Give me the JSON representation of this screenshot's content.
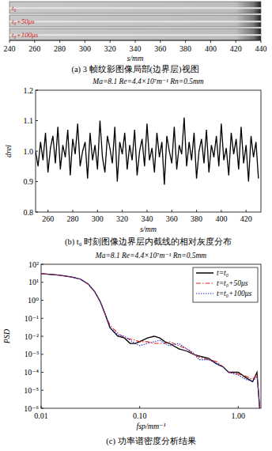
{
  "chart_data": [
    {
      "type": "image",
      "strip_labels": [
        "t₀",
        "t₀+50μs",
        "t₀+100μs"
      ],
      "xlim": [
        240,
        440
      ],
      "xticks": [
        240,
        260,
        280,
        300,
        320,
        340,
        360,
        380,
        400,
        420,
        440
      ],
      "xlabel": "s/mm",
      "caption": "(a) 3 帧纹影图像局部(边界层)视图"
    },
    {
      "type": "line",
      "title": "Ma=8.1   Re=4.4×10⁷m⁻¹   Rn=0.5mm",
      "xlabel": "s/mm",
      "ylabel": "drel",
      "xlim": [
        250,
        432
      ],
      "ylim": [
        0.8,
        1.2
      ],
      "xticks": [
        260,
        280,
        300,
        320,
        340,
        360,
        380,
        400,
        420
      ],
      "yticks": [
        0.8,
        0.9,
        {
          "value": 1,
          "label": "1.0"
        },
        1.1,
        1.2
      ],
      "x": [
        250,
        252,
        254,
        256,
        258,
        260,
        262,
        264,
        266,
        268,
        270,
        272,
        274,
        276,
        278,
        280,
        282,
        284,
        286,
        288,
        290,
        292,
        294,
        296,
        298,
        300,
        302,
        304,
        306,
        308,
        310,
        312,
        314,
        316,
        318,
        320,
        322,
        324,
        326,
        328,
        330,
        332,
        334,
        336,
        338,
        340,
        342,
        344,
        346,
        348,
        350,
        352,
        354,
        356,
        358,
        360,
        362,
        364,
        366,
        368,
        370,
        372,
        374,
        376,
        378,
        380,
        382,
        384,
        386,
        388,
        390,
        392,
        394,
        396,
        398,
        400,
        402,
        404,
        406,
        408,
        410,
        412,
        414,
        416,
        418,
        420,
        422,
        424,
        426,
        428,
        430
      ],
      "values": [
        1.0,
        0.95,
        1.03,
        0.97,
        1.06,
        0.93,
        1.01,
        1.05,
        0.96,
        1.08,
        0.94,
        1.02,
        0.98,
        1.07,
        0.92,
        1.04,
        0.99,
        1.09,
        0.95,
        1.0,
        1.03,
        0.91,
        1.06,
        0.97,
        1.02,
        0.94,
        1.1,
        0.98,
        0.93,
        1.05,
        1.01,
        0.96,
        1.08,
        0.9,
        1.03,
        0.99,
        1.06,
        0.94,
        1.02,
        0.97,
        1.07,
        0.92,
        1.0,
        1.04,
        0.95,
        1.09,
        0.97,
        1.01,
        0.93,
        1.06,
        0.98,
        1.03,
        0.89,
        1.05,
        1.0,
        0.96,
        1.08,
        0.94,
        1.02,
        0.99,
        1.11,
        0.95,
        1.03,
        0.97,
        1.06,
        0.91,
        1.0,
        1.04,
        0.96,
        1.07,
        0.93,
        1.02,
        0.98,
        1.05,
        0.95,
        1.09,
        0.97,
        1.01,
        0.92,
        1.06,
        0.99,
        1.04,
        0.94,
        1.08,
        0.96,
        1.02,
        0.9,
        1.05,
        0.98,
        1.03,
        0.91
      ],
      "color": "#000000",
      "caption": "(b) t₀ 时刻图像边界层内截线的相对灰度分布"
    },
    {
      "type": "line",
      "log": true,
      "title": "Ma=8.1   Re=4.4×10⁷m⁻¹   Rn=0.5mm",
      "xlabel": "fsp/mm⁻¹",
      "ylabel": "PSD",
      "xlim": [
        0.01,
        1.7
      ],
      "ylim": [
        1e-06,
        100
      ],
      "xticks": [
        {
          "value": 0.01,
          "label": "0.01"
        },
        {
          "value": 0.1,
          "label": "0.10"
        },
        {
          "value": 1,
          "label": "1.00"
        }
      ],
      "yticks": [
        {
          "value": 1e-06,
          "label": "10⁻⁶"
        },
        {
          "value": 1e-05,
          "label": "10⁻⁵"
        },
        {
          "value": 0.0001,
          "label": "10⁻⁴"
        },
        {
          "value": 0.001,
          "label": "10⁻³"
        },
        {
          "value": 0.01,
          "label": "10⁻²"
        },
        {
          "value": 0.1,
          "label": "10⁻¹"
        },
        {
          "value": 1,
          "label": "10⁰"
        },
        {
          "value": 10,
          "label": "10¹"
        },
        {
          "value": 100,
          "label": "10²"
        }
      ],
      "x": [
        0.01,
        0.015,
        0.02,
        0.025,
        0.03,
        0.035,
        0.04,
        0.045,
        0.05,
        0.06,
        0.07,
        0.08,
        0.09,
        0.1,
        0.12,
        0.14,
        0.16,
        0.18,
        0.2,
        0.25,
        0.3,
        0.35,
        0.4,
        0.5,
        0.6,
        0.7,
        0.8,
        1.0,
        1.2,
        1.4,
        1.55,
        1.6,
        1.65
      ],
      "series": [
        {
          "name": "t=t₀",
          "color": "#000000",
          "line_style": "solid",
          "values": [
            30,
            25,
            20,
            15,
            8,
            3,
            0.8,
            0.15,
            0.03,
            0.01,
            0.008,
            0.004,
            0.004,
            0.005,
            0.008,
            0.01,
            0.008,
            0.005,
            0.004,
            0.002,
            0.0015,
            0.001,
            0.0008,
            0.0006,
            0.0003,
            0.0002,
            0.0001,
            0.0001,
            5e-05,
            3e-05,
            0.0001,
            1e-05,
            1e-06
          ]
        },
        {
          "name": "t=t₀+50μs",
          "color": "#e02020",
          "line_style": "dashdot",
          "values": [
            30,
            25,
            20,
            15,
            8,
            3,
            0.8,
            0.15,
            0.04,
            0.015,
            0.008,
            0.007,
            0.006,
            0.005,
            0.005,
            0.004,
            0.004,
            0.004,
            0.005,
            0.003,
            0.002,
            0.001,
            0.0007,
            0.0005,
            0.0004,
            0.0002,
            0.0001,
            8e-05,
            6e-05,
            4e-05,
            8e-05,
            1e-05,
            1e-06
          ]
        },
        {
          "name": "t=t₀+100μs",
          "color": "#2030d0",
          "line_style": "dotted",
          "values": [
            30,
            25,
            20,
            15,
            8,
            3,
            0.8,
            0.15,
            0.03,
            0.012,
            0.01,
            0.006,
            0.004,
            0.003,
            0.004,
            0.005,
            0.006,
            0.004,
            0.003,
            0.004,
            0.002,
            0.0012,
            0.0005,
            0.0005,
            0.0003,
            0.0002,
            0.0001,
            7e-05,
            4e-05,
            3e-05,
            6e-05,
            1e-05,
            1e-06
          ]
        }
      ],
      "legend": "upper right",
      "caption": "(c) 功率谱密度分析结果"
    }
  ]
}
